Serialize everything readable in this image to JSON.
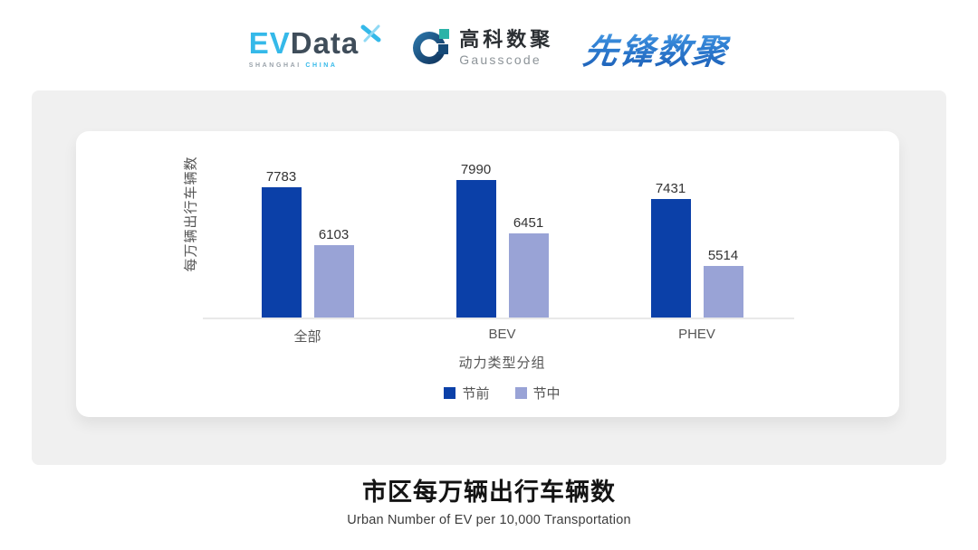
{
  "header": {
    "evdata": {
      "ev": "EV",
      "data": "Data",
      "sub1": "SHANGHAI",
      "sub2": "CHINA"
    },
    "gausscode": {
      "cn": "高科数聚",
      "en": "Gausscode"
    },
    "xianfeng": {
      "text": "先锋数聚"
    }
  },
  "chart_data": {
    "type": "bar",
    "categories": [
      "全部",
      "BEV",
      "PHEV"
    ],
    "series": [
      {
        "name": "节前",
        "color": "#0b40a8",
        "values": [
          7783,
          7990,
          7431
        ]
      },
      {
        "name": "节中",
        "color": "#99a3d6",
        "values": [
          6103,
          6451,
          5514
        ]
      }
    ],
    "xlabel": "动力类型分组",
    "ylabel": "每万辆出行车辆数",
    "ylim": [
      4000,
      8400
    ],
    "grid": false,
    "legend_position": "bottom",
    "value_labels": true
  },
  "footer": {
    "title": "市区每万辆出行车辆数",
    "subtitle": "Urban Number of EV per 10,000 Transportation"
  },
  "colors": {
    "panel_bg": "#f0f0f0",
    "card_bg": "#ffffff",
    "series_pre": "#0b40a8",
    "series_mid": "#99a3d6",
    "evdata_cyan": "#35b9e9",
    "evdata_dark": "#3f4d5a",
    "gausscode_navy": "#164a78",
    "gausscode_teal": "#2cb3a8",
    "xianfeng_blue": "#2f7fd2",
    "axis_line": "#e9e9e9",
    "text_muted": "#555555"
  }
}
